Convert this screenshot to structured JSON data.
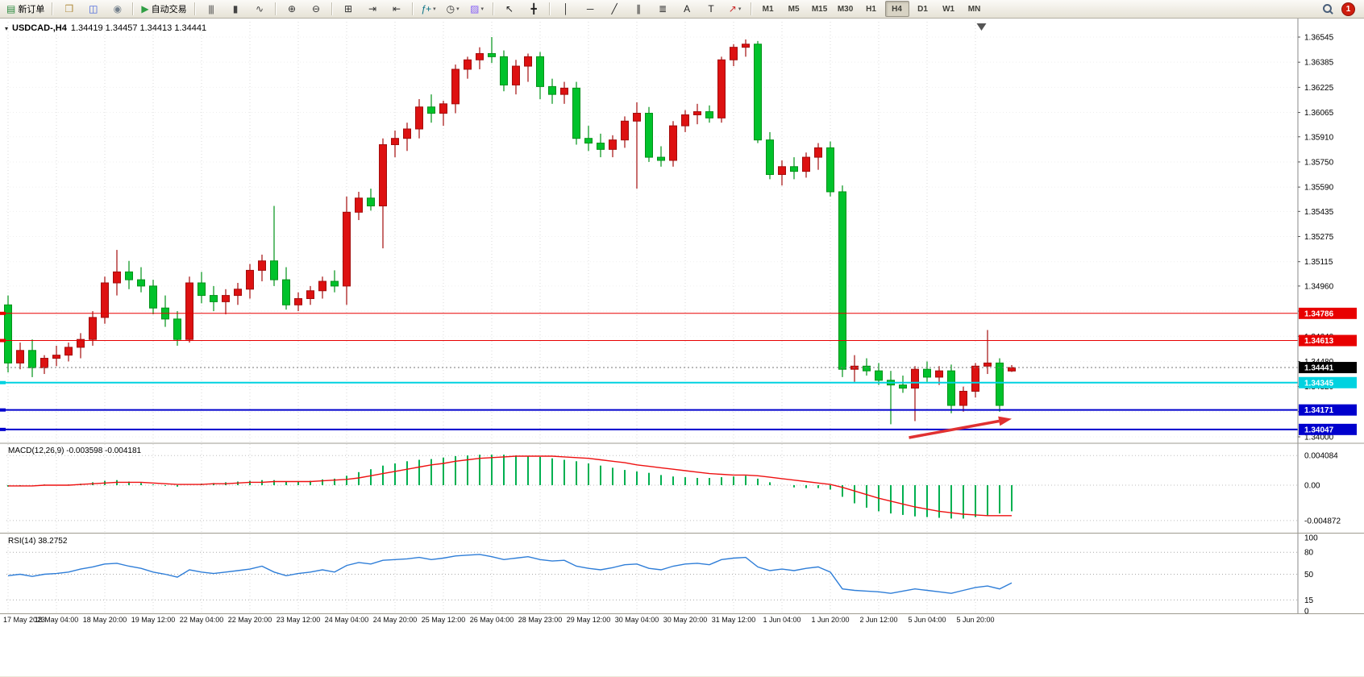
{
  "toolbar": {
    "notification_count": "1",
    "items": [
      {
        "name": "new-order-button",
        "glyph": "▤",
        "color": "#2b8a3e",
        "label": "新订单"
      },
      {
        "type": "sep"
      },
      {
        "name": "charts-bar-button",
        "glyph": "❒",
        "color": "#b08c3e"
      },
      {
        "name": "profiles-button",
        "glyph": "◫",
        "color": "#3b5bdb"
      },
      {
        "name": "market-watch-button",
        "glyph": "◉",
        "color": "#74808c"
      },
      {
        "type": "sep"
      },
      {
        "name": "autotrade-button",
        "glyph": "▶",
        "color": "#2f9e44",
        "label": "自动交易"
      },
      {
        "type": "sep"
      },
      {
        "name": "bars-chart-button",
        "glyph": "|||",
        "color": "#444444"
      },
      {
        "name": "candles-chart-button",
        "glyph": "▮",
        "color": "#444444"
      },
      {
        "name": "line-chart-button",
        "glyph": "∿",
        "color": "#444444"
      },
      {
        "type": "sep"
      },
      {
        "name": "zoom-in-button",
        "glyph": "⊕",
        "color": "#333333"
      },
      {
        "name": "zoom-out-button",
        "glyph": "⊖",
        "color": "#333333"
      },
      {
        "type": "sep"
      },
      {
        "name": "tile-windows-button",
        "glyph": "⊞",
        "color": "#333333"
      },
      {
        "name": "auto-scroll-button",
        "glyph": "⇥",
        "color": "#333333"
      },
      {
        "name": "chart-shift-button",
        "glyph": "⇤",
        "color": "#333333"
      },
      {
        "type": "sep"
      },
      {
        "name": "indicators-button",
        "glyph": "ƒ+",
        "color": "#0b7285",
        "dropdown": true
      },
      {
        "name": "periods-button",
        "glyph": "◷",
        "color": "#333333",
        "dropdown": true
      },
      {
        "name": "templates-button",
        "glyph": "▨",
        "color": "#845ef7",
        "dropdown": true
      },
      {
        "type": "sep"
      },
      {
        "name": "cursor-button",
        "glyph": "↖",
        "color": "#222222"
      },
      {
        "name": "crosshair-button",
        "glyph": "╋",
        "color": "#222222"
      },
      {
        "type": "sep"
      },
      {
        "name": "vertical-line-button",
        "glyph": "│",
        "color": "#222222"
      },
      {
        "name": "horizontal-line-button",
        "glyph": "─",
        "color": "#222222"
      },
      {
        "name": "trendline-button",
        "glyph": "╱",
        "color": "#222222"
      },
      {
        "name": "channel-button",
        "glyph": "∥",
        "color": "#222222"
      },
      {
        "name": "fibonacci-button",
        "glyph": "≣",
        "color": "#222222"
      },
      {
        "name": "text-button",
        "glyph": "A",
        "color": "#222222"
      },
      {
        "name": "label-button",
        "glyph": "T",
        "color": "#222222"
      },
      {
        "name": "arrows-button",
        "glyph": "↗",
        "color": "#c92a2a",
        "dropdown": true
      },
      {
        "type": "sep"
      },
      {
        "name": "timeframe-m1-button",
        "text": "M1"
      },
      {
        "name": "timeframe-m5-button",
        "text": "M5"
      },
      {
        "name": "timeframe-m15-button",
        "text": "M15"
      },
      {
        "name": "timeframe-m30-button",
        "text": "M30"
      },
      {
        "name": "timeframe-h1-button",
        "text": "H1"
      },
      {
        "name": "timeframe-h4-button",
        "text": "H4",
        "active": true
      },
      {
        "name": "timeframe-d1-button",
        "text": "D1"
      },
      {
        "name": "timeframe-w1-button",
        "text": "W1"
      },
      {
        "name": "timeframe-mn-button",
        "text": "MN"
      }
    ]
  },
  "chart": {
    "collapse_glyph": "▾",
    "title": "USDCAD-,H4",
    "ohlc": "1.34419 1.34457 1.34413 1.34441"
  },
  "chart_data": {
    "type": "candlestick",
    "symbol": "USDCAD",
    "period": "H4",
    "up_color": "#dd1111",
    "up_stroke": "#a30c0c",
    "down_color": "#00c22b",
    "down_stroke": "#009218",
    "price_axis_labels": [
      "1.36545",
      "1.36385",
      "1.36225",
      "1.36065",
      "1.35910",
      "1.35750",
      "1.35590",
      "1.35435",
      "1.35275",
      "1.35115",
      "1.34960",
      "1.34800",
      "1.34640",
      "1.34480",
      "1.34320",
      "1.34160",
      "1.34000"
    ],
    "time_labels": [
      "17 May 2023",
      "18 May 04:00",
      "18 May 20:00",
      "19 May 12:00",
      "22 May 04:00",
      "22 May 20:00",
      "23 May 12:00",
      "24 May 04:00",
      "24 May 20:00",
      "25 May 12:00",
      "26 May 04:00",
      "28 May 23:00",
      "29 May 12:00",
      "30 May 04:00",
      "30 May 20:00",
      "31 May 12:00",
      "1 Jun 04:00",
      "1 Jun 20:00",
      "2 Jun 12:00",
      "5 Jun 04:00",
      "5 Jun 20:00"
    ],
    "candles_per_label": 4,
    "candles": [
      [
        1.3484,
        1.349,
        1.3441,
        1.3447
      ],
      [
        1.3447,
        1.346,
        1.3443,
        1.3455
      ],
      [
        1.3455,
        1.3462,
        1.3438,
        1.3444
      ],
      [
        1.3444,
        1.3452,
        1.344,
        1.345
      ],
      [
        1.345,
        1.3458,
        1.3445,
        1.3452
      ],
      [
        1.3452,
        1.346,
        1.3448,
        1.3457
      ],
      [
        1.3457,
        1.3466,
        1.345,
        1.3462
      ],
      [
        1.3462,
        1.348,
        1.3458,
        1.3476
      ],
      [
        1.3476,
        1.3502,
        1.3472,
        1.3498
      ],
      [
        1.3498,
        1.3519,
        1.349,
        1.3505
      ],
      [
        1.3505,
        1.3512,
        1.3494,
        1.35
      ],
      [
        1.35,
        1.3508,
        1.3492,
        1.3496
      ],
      [
        1.3496,
        1.35,
        1.3478,
        1.3482
      ],
      [
        1.3482,
        1.349,
        1.347,
        1.3475
      ],
      [
        1.3475,
        1.348,
        1.3458,
        1.3462
      ],
      [
        1.3462,
        1.3502,
        1.346,
        1.3498
      ],
      [
        1.3498,
        1.3505,
        1.3485,
        1.349
      ],
      [
        1.349,
        1.3496,
        1.348,
        1.3486
      ],
      [
        1.3486,
        1.3494,
        1.3478,
        1.349
      ],
      [
        1.349,
        1.3498,
        1.3484,
        1.3494
      ],
      [
        1.3494,
        1.351,
        1.3488,
        1.3506
      ],
      [
        1.3506,
        1.3516,
        1.3499,
        1.3512
      ],
      [
        1.3512,
        1.3547,
        1.3496,
        1.35
      ],
      [
        1.35,
        1.3508,
        1.3481,
        1.3484
      ],
      [
        1.3484,
        1.3492,
        1.348,
        1.3488
      ],
      [
        1.3488,
        1.3496,
        1.3484,
        1.3493
      ],
      [
        1.3493,
        1.3502,
        1.3488,
        1.3499
      ],
      [
        1.3499,
        1.3506,
        1.3492,
        1.3496
      ],
      [
        1.3496,
        1.3553,
        1.3484,
        1.3543
      ],
      [
        1.3543,
        1.3556,
        1.3538,
        1.3552
      ],
      [
        1.3552,
        1.3558,
        1.3544,
        1.3547
      ],
      [
        1.3547,
        1.359,
        1.352,
        1.3586
      ],
      [
        1.3586,
        1.3595,
        1.3578,
        1.359
      ],
      [
        1.359,
        1.36,
        1.3582,
        1.3596
      ],
      [
        1.3596,
        1.3615,
        1.359,
        1.361
      ],
      [
        1.361,
        1.3618,
        1.36,
        1.3606
      ],
      [
        1.3606,
        1.3614,
        1.3598,
        1.3612
      ],
      [
        1.3612,
        1.3637,
        1.3606,
        1.3634
      ],
      [
        1.3634,
        1.3642,
        1.3628,
        1.364
      ],
      [
        1.364,
        1.3648,
        1.3634,
        1.3644
      ],
      [
        1.3644,
        1.36545,
        1.3638,
        1.3642
      ],
      [
        1.3642,
        1.3646,
        1.362,
        1.3624
      ],
      [
        1.3624,
        1.364,
        1.3618,
        1.3636
      ],
      [
        1.3636,
        1.3644,
        1.3626,
        1.3642
      ],
      [
        1.3642,
        1.3645,
        1.3615,
        1.3623
      ],
      [
        1.3623,
        1.3628,
        1.3612,
        1.3618
      ],
      [
        1.3618,
        1.3626,
        1.3612,
        1.3622
      ],
      [
        1.3622,
        1.3626,
        1.3586,
        1.359
      ],
      [
        1.359,
        1.3598,
        1.3582,
        1.3587
      ],
      [
        1.3587,
        1.3593,
        1.3578,
        1.3583
      ],
      [
        1.3583,
        1.3592,
        1.3578,
        1.3589
      ],
      [
        1.3589,
        1.3604,
        1.3584,
        1.3601
      ],
      [
        1.3601,
        1.3613,
        1.3558,
        1.3606
      ],
      [
        1.3606,
        1.361,
        1.3575,
        1.3578
      ],
      [
        1.3578,
        1.3585,
        1.3572,
        1.3576
      ],
      [
        1.3576,
        1.3601,
        1.3572,
        1.3598
      ],
      [
        1.3598,
        1.3608,
        1.3594,
        1.3605
      ],
      [
        1.3605,
        1.3612,
        1.3599,
        1.3607
      ],
      [
        1.3607,
        1.3611,
        1.36,
        1.3603
      ],
      [
        1.3603,
        1.3642,
        1.36,
        1.364
      ],
      [
        1.364,
        1.365,
        1.3636,
        1.3648
      ],
      [
        1.3648,
        1.3653,
        1.3642,
        1.365
      ],
      [
        1.365,
        1.3652,
        1.3587,
        1.3589
      ],
      [
        1.3589,
        1.3594,
        1.3564,
        1.3567
      ],
      [
        1.3567,
        1.3576,
        1.356,
        1.3572
      ],
      [
        1.3572,
        1.3578,
        1.3564,
        1.3569
      ],
      [
        1.3569,
        1.3581,
        1.3565,
        1.3578
      ],
      [
        1.3578,
        1.3587,
        1.357,
        1.3584
      ],
      [
        1.3584,
        1.3588,
        1.3553,
        1.3556
      ],
      [
        1.3556,
        1.356,
        1.3438,
        1.3443
      ],
      [
        1.3443,
        1.3452,
        1.3435,
        1.3445
      ],
      [
        1.3445,
        1.345,
        1.3439,
        1.3442
      ],
      [
        1.3442,
        1.3447,
        1.3433,
        1.3436
      ],
      [
        1.3436,
        1.3442,
        1.3408,
        1.3433
      ],
      [
        1.3433,
        1.3439,
        1.3428,
        1.3431
      ],
      [
        1.3431,
        1.3445,
        1.341,
        1.3443
      ],
      [
        1.3443,
        1.3448,
        1.3435,
        1.3438
      ],
      [
        1.3438,
        1.3445,
        1.3433,
        1.3442
      ],
      [
        1.3442,
        1.3446,
        1.3415,
        1.342
      ],
      [
        1.342,
        1.3432,
        1.3416,
        1.3429
      ],
      [
        1.3429,
        1.3447,
        1.3425,
        1.3445
      ],
      [
        1.3445,
        1.3468,
        1.344,
        1.3447
      ],
      [
        1.3447,
        1.345,
        1.3416,
        1.342
      ],
      [
        1.34419,
        1.34457,
        1.34413,
        1.34441
      ]
    ],
    "hlines": [
      {
        "price": 1.34786,
        "label": "1.34786",
        "color": "#e80000",
        "width": 1
      },
      {
        "price": 1.34613,
        "label": "1.34613",
        "color": "#e80000",
        "width": 1
      },
      {
        "price": 1.34345,
        "label": "1.34345",
        "color": "#00d2e0",
        "width": 2
      },
      {
        "price": 1.34171,
        "label": "1.34171",
        "color": "#0000cd",
        "width": 2
      },
      {
        "price": 1.34047,
        "label": "1.34047",
        "color": "#0000cd",
        "width": 2
      }
    ],
    "current_price": {
      "value": 1.34441,
      "label": "1.34441",
      "badge_color": "#000000"
    },
    "arrow": {
      "from_index": 74.5,
      "from_price": 1.33995,
      "to_index": 83,
      "to_price": 1.34115,
      "color": "#e03131"
    },
    "shift_marker_index": 80.5,
    "macd": {
      "name": "MACD(12,26,9)",
      "current": "-0.003598 -0.004181",
      "axis": [
        {
          "text": "0.004084",
          "value": 0.004084
        },
        {
          "text": "0.00",
          "value": 0
        },
        {
          "text": "-0.004872",
          "value": -0.004872
        }
      ],
      "histogram_color": "#00b050",
      "signal_color": "#ee1111",
      "histogram": [
        -0.0002,
        -0.0001,
        0.0,
        0.0001,
        0.0,
        0.0001,
        0.0002,
        0.0004,
        0.0006,
        0.0007,
        0.0005,
        0.0003,
        0.0001,
        -0.0001,
        -0.0002,
        0.0,
        0.0002,
        0.0003,
        0.0004,
        0.0005,
        0.0006,
        0.0007,
        0.0007,
        0.0005,
        0.0005,
        0.0006,
        0.0008,
        0.0009,
        0.0013,
        0.0018,
        0.0022,
        0.0027,
        0.003,
        0.0033,
        0.0035,
        0.0036,
        0.0038,
        0.004,
        0.0041,
        0.0042,
        0.0042,
        0.0042,
        0.0041,
        0.004,
        0.0039,
        0.0037,
        0.0035,
        0.0033,
        0.003,
        0.0027,
        0.0024,
        0.0021,
        0.0019,
        0.0017,
        0.0014,
        0.0012,
        0.0011,
        0.001,
        0.001,
        0.0011,
        0.0012,
        0.0013,
        0.0009,
        0.0004,
        0.0,
        -0.0003,
        -0.0004,
        -0.0004,
        -0.0006,
        -0.0016,
        -0.0025,
        -0.0031,
        -0.0036,
        -0.0039,
        -0.0041,
        -0.0043,
        -0.0044,
        -0.0045,
        -0.0046,
        -0.0046,
        -0.0044,
        -0.0042,
        -0.0039,
        -0.0036
      ],
      "signal": [
        -0.0001,
        -0.0001,
        -0.0001,
        0.0,
        0.0,
        0.0,
        0.0001,
        0.0002,
        0.0003,
        0.0004,
        0.0004,
        0.0004,
        0.0003,
        0.0002,
        0.0001,
        0.0001,
        0.0001,
        0.0002,
        0.0002,
        0.0003,
        0.0004,
        0.0004,
        0.0005,
        0.0005,
        0.0005,
        0.0005,
        0.0006,
        0.0007,
        0.0008,
        0.001,
        0.0013,
        0.0016,
        0.0019,
        0.0022,
        0.0025,
        0.0028,
        0.003,
        0.0033,
        0.0035,
        0.0037,
        0.0038,
        0.0039,
        0.004,
        0.004,
        0.004,
        0.004,
        0.0039,
        0.0038,
        0.0037,
        0.0035,
        0.0033,
        0.0031,
        0.0028,
        0.0026,
        0.0024,
        0.0022,
        0.002,
        0.0018,
        0.0016,
        0.0015,
        0.0014,
        0.0014,
        0.0013,
        0.0011,
        0.0009,
        0.0007,
        0.0005,
        0.0003,
        0.0001,
        -0.0003,
        -0.0008,
        -0.0013,
        -0.0018,
        -0.0022,
        -0.0026,
        -0.003,
        -0.0033,
        -0.0036,
        -0.0038,
        -0.004,
        -0.0041,
        -0.0042,
        -0.0042,
        -0.0042
      ]
    },
    "rsi": {
      "name": "RSI(14)",
      "current": "38.2752",
      "color": "#2f7ed8",
      "axis": [
        {
          "text": "100",
          "value": 100
        },
        {
          "text": "80",
          "value": 80
        },
        {
          "text": "50",
          "value": 50
        },
        {
          "text": "15",
          "value": 15
        },
        {
          "text": "0",
          "value": 0
        }
      ],
      "levels": [
        80,
        50,
        15
      ],
      "values": [
        48,
        50,
        47,
        50,
        51,
        53,
        57,
        60,
        64,
        65,
        61,
        58,
        53,
        50,
        46,
        56,
        53,
        51,
        53,
        55,
        57,
        61,
        53,
        48,
        51,
        53,
        56,
        53,
        62,
        66,
        64,
        69,
        70,
        71,
        73,
        70,
        72,
        75,
        76,
        77,
        74,
        70,
        72,
        74,
        70,
        68,
        69,
        61,
        58,
        56,
        59,
        63,
        64,
        58,
        56,
        61,
        64,
        65,
        63,
        70,
        72,
        73,
        60,
        55,
        57,
        55,
        58,
        60,
        53,
        30,
        28,
        27,
        26,
        24,
        27,
        30,
        28,
        26,
        24,
        28,
        32,
        34,
        30,
        38.28
      ]
    }
  }
}
